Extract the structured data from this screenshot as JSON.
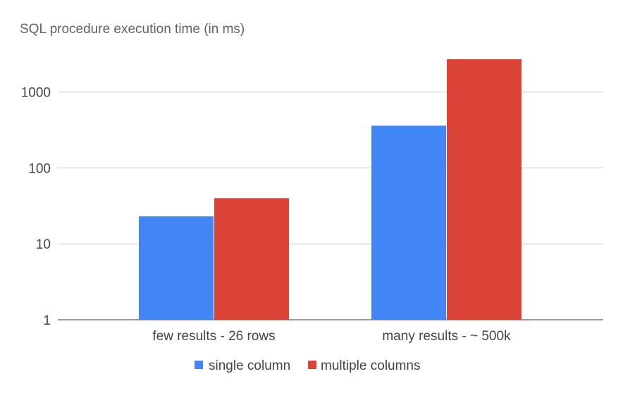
{
  "chart_data": {
    "type": "bar",
    "title": "SQL procedure execution time (in ms)",
    "xlabel": "",
    "ylabel": "",
    "yscale": "log",
    "ylim": [
      1,
      3000
    ],
    "yticks": [
      "1",
      "10",
      "100",
      "1000"
    ],
    "categories": [
      "few results - 26 rows",
      "many results - ~ 500k"
    ],
    "series": [
      {
        "name": "single column",
        "values": [
          23,
          360
        ],
        "color": "#4285f4"
      },
      {
        "name": "multiple columns",
        "values": [
          40,
          2700
        ],
        "color": "#db4437"
      }
    ],
    "grid": true,
    "legend_position": "bottom"
  }
}
